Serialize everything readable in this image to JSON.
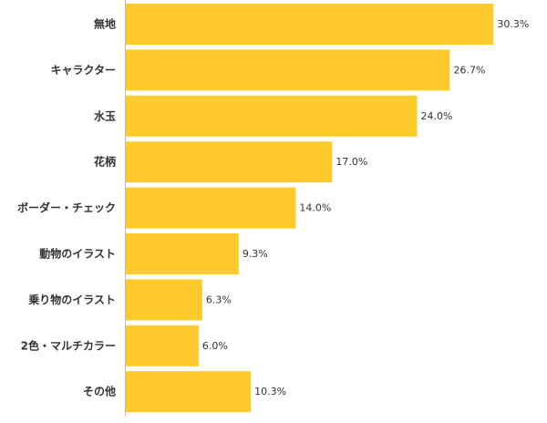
{
  "chart_data": {
    "type": "bar",
    "orientation": "horizontal",
    "categories": [
      "無地",
      "キャラクター",
      "水玉",
      "花柄",
      "ボーダー・チェック",
      "動物のイラスト",
      "乗り物のイラスト",
      "2色・マルチカラー",
      "その他"
    ],
    "values": [
      30.3,
      26.7,
      24.0,
      17.0,
      14.0,
      9.3,
      6.3,
      6.0,
      10.3
    ],
    "value_labels": [
      "30.3%",
      "26.7%",
      "24.0%",
      "17.0%",
      "14.0%",
      "9.3%",
      "6.3%",
      "6.0%",
      "10.3%"
    ],
    "unit": "%",
    "title": "",
    "xlabel": "",
    "ylabel": "",
    "xlim": [
      0,
      33.8
    ],
    "grid": false,
    "legend": false,
    "bar_color": "#FFCA2C",
    "axis_color": "#bbbbbb"
  }
}
